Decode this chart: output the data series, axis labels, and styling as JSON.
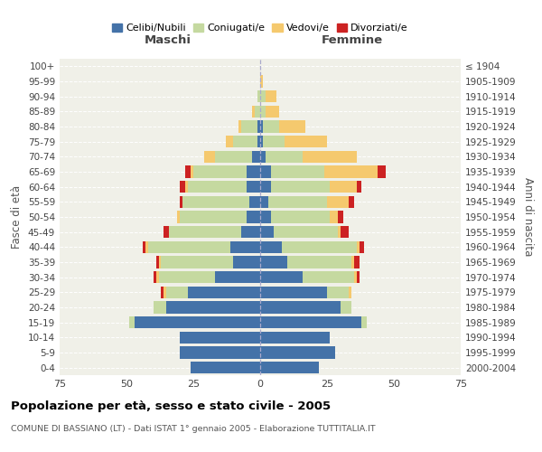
{
  "age_groups": [
    "0-4",
    "5-9",
    "10-14",
    "15-19",
    "20-24",
    "25-29",
    "30-34",
    "35-39",
    "40-44",
    "45-49",
    "50-54",
    "55-59",
    "60-64",
    "65-69",
    "70-74",
    "75-79",
    "80-84",
    "85-89",
    "90-94",
    "95-99",
    "100+"
  ],
  "birth_years": [
    "2000-2004",
    "1995-1999",
    "1990-1994",
    "1985-1989",
    "1980-1984",
    "1975-1979",
    "1970-1974",
    "1965-1969",
    "1960-1964",
    "1955-1959",
    "1950-1954",
    "1945-1949",
    "1940-1944",
    "1935-1939",
    "1930-1934",
    "1925-1929",
    "1920-1924",
    "1915-1919",
    "1910-1914",
    "1905-1909",
    "≤ 1904"
  ],
  "maschi": {
    "celibi": [
      26,
      30,
      30,
      47,
      35,
      27,
      17,
      10,
      11,
      7,
      5,
      4,
      5,
      5,
      3,
      1,
      1,
      0,
      0,
      0,
      0
    ],
    "coniugati": [
      0,
      0,
      0,
      2,
      5,
      8,
      21,
      27,
      31,
      27,
      25,
      25,
      22,
      20,
      14,
      9,
      6,
      2,
      1,
      0,
      0
    ],
    "vedovi": [
      0,
      0,
      0,
      0,
      0,
      1,
      1,
      1,
      1,
      0,
      1,
      0,
      1,
      1,
      4,
      3,
      1,
      1,
      0,
      0,
      0
    ],
    "divorziati": [
      0,
      0,
      0,
      0,
      0,
      1,
      1,
      1,
      1,
      2,
      0,
      1,
      2,
      2,
      0,
      0,
      0,
      0,
      0,
      0,
      0
    ]
  },
  "femmine": {
    "nubili": [
      22,
      28,
      26,
      38,
      30,
      25,
      16,
      10,
      8,
      5,
      4,
      3,
      4,
      4,
      2,
      1,
      1,
      0,
      0,
      0,
      0
    ],
    "coniugate": [
      0,
      0,
      0,
      2,
      4,
      8,
      19,
      24,
      28,
      24,
      22,
      22,
      22,
      20,
      14,
      8,
      6,
      2,
      2,
      0,
      0
    ],
    "vedove": [
      0,
      0,
      0,
      0,
      0,
      1,
      1,
      1,
      1,
      1,
      3,
      8,
      10,
      20,
      20,
      16,
      10,
      5,
      4,
      1,
      0
    ],
    "divorziate": [
      0,
      0,
      0,
      0,
      0,
      0,
      1,
      2,
      2,
      3,
      2,
      2,
      2,
      3,
      0,
      0,
      0,
      0,
      0,
      0,
      0
    ]
  },
  "colors": {
    "celibi": "#4472a8",
    "coniugati": "#c5d9a0",
    "vedovi": "#f5c96e",
    "divorziati": "#cc2222"
  },
  "xlim": 75,
  "title": "Popolazione per età, sesso e stato civile - 2005",
  "subtitle": "COMUNE DI BASSIANO (LT) - Dati ISTAT 1° gennaio 2005 - Elaborazione TUTTITALIA.IT",
  "ylabel_left": "Fasce di età",
  "ylabel_right": "Anni di nascita",
  "xlabel_left": "Maschi",
  "xlabel_right": "Femmine",
  "legend_labels": [
    "Celibi/Nubili",
    "Coniugati/e",
    "Vedovi/e",
    "Divorziati/e"
  ],
  "bg_color": "#f0f0e8"
}
